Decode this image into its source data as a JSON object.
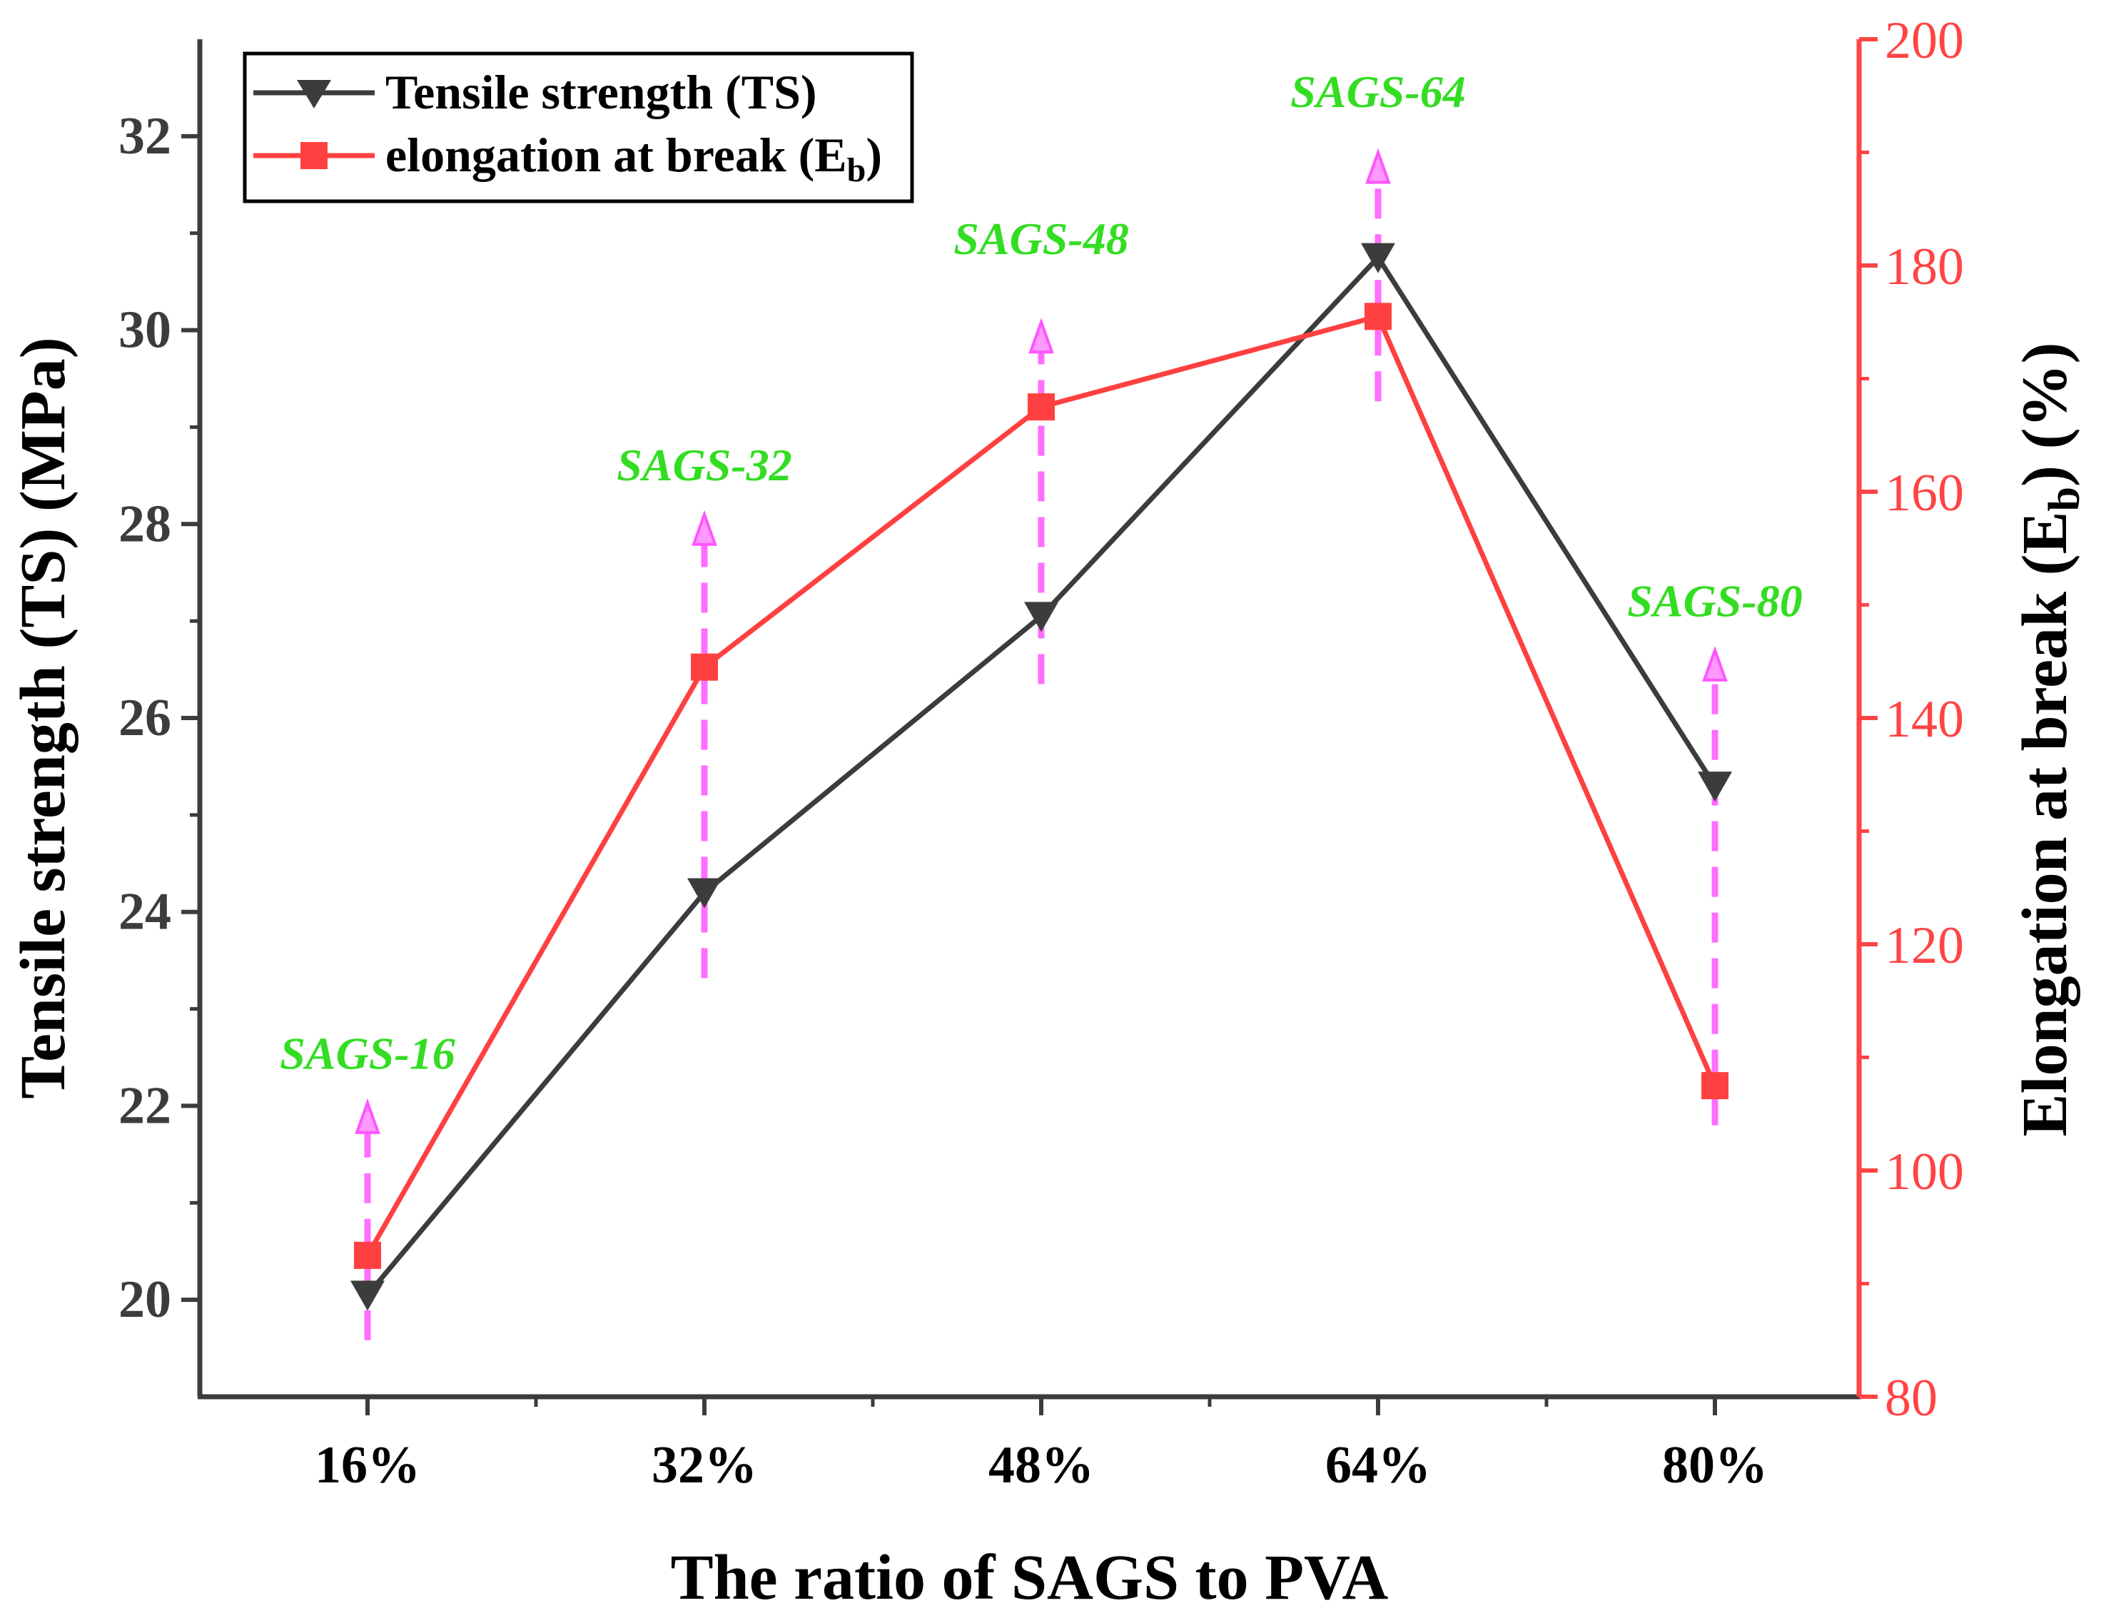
{
  "chart_data": {
    "type": "line",
    "xlabel": "The ratio of SAGS to PVA",
    "categories": [
      "16%",
      "32%",
      "48%",
      "64%",
      "80%"
    ],
    "y_left": {
      "label_main": "Tensile strength (TS) (MPa)",
      "ylim": [
        19,
        33
      ],
      "ticks": [
        20,
        22,
        24,
        26,
        28,
        30,
        32
      ],
      "minor_ticks": [
        21,
        23,
        25,
        27,
        29,
        31
      ],
      "color": "#3c3c3c"
    },
    "y_right": {
      "label_prefix": "Elongation at break (E",
      "label_sub": "b",
      "label_suffix": ") (%)",
      "ylim": [
        80,
        200
      ],
      "ticks": [
        80,
        100,
        120,
        140,
        160,
        180,
        200
      ],
      "minor_ticks": [
        90,
        110,
        130,
        150,
        170,
        190
      ],
      "color": "#ff4444"
    },
    "series": [
      {
        "name": "Tensile strength (TS)",
        "axis": "left",
        "marker": "triangle-down",
        "color": "#3c3c3c",
        "values": [
          20.05,
          24.2,
          27.05,
          30.75,
          25.3
        ]
      },
      {
        "name_prefix": "elongation at break (E",
        "name_sub": "b",
        "name_suffix": ")",
        "axis": "right",
        "marker": "square",
        "color": "#ff4040",
        "values": [
          92.5,
          144.5,
          167.5,
          175.5,
          107.5
        ]
      }
    ],
    "annotations": [
      {
        "text": "SAGS-16",
        "category": "16%",
        "arrow_from_right": 85,
        "arrow_to_right": 106,
        "label_right": 109
      },
      {
        "text": "SAGS-32",
        "category": "32%",
        "arrow_from_right": 117,
        "arrow_to_right": 158,
        "label_right": 161
      },
      {
        "text": "SAGS-48",
        "category": "48%",
        "arrow_from_right": 143,
        "arrow_to_right": 175,
        "label_right": 181
      },
      {
        "text": "SAGS-64",
        "category": "64%",
        "arrow_from_right": 168,
        "arrow_to_right": 190,
        "label_right": 194
      },
      {
        "text": "SAGS-80",
        "category": "80%",
        "arrow_from_right": 104,
        "arrow_to_right": 146,
        "label_right": 149
      }
    ],
    "annotation_color": "#33dd22",
    "arrow_color": "#ff55ff",
    "legend_position": "top-left"
  }
}
